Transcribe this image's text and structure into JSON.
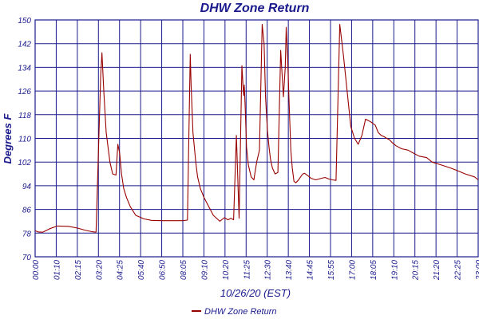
{
  "chart_data": {
    "type": "line",
    "title": "DHW Zone Return",
    "xlabel": "10/26/20 (EST)",
    "ylabel": "Degrees F",
    "ylim": [
      70,
      150
    ],
    "yticks": [
      70,
      78,
      86,
      94,
      102,
      110,
      118,
      126,
      134,
      142,
      150
    ],
    "xlim_hours": [
      0,
      24
    ],
    "xtick_labels": [
      "00:00",
      "01:10",
      "02:15",
      "03:20",
      "04:25",
      "05:40",
      "06:50",
      "08:05",
      "09:10",
      "10:20",
      "11:25",
      "12:30",
      "13:40",
      "14:45",
      "15:55",
      "17:00",
      "18:05",
      "19:10",
      "20:15",
      "21:20",
      "22:25",
      "23:00"
    ],
    "grid": true,
    "legend": "bottom-center",
    "colors": {
      "series": "#990000",
      "grid": "#1a1a8c",
      "text": "#1a1a8c"
    },
    "series": [
      {
        "name": "DHW Zone Return",
        "x": [
          0,
          0.15,
          0.4,
          0.8,
          1.2,
          1.8,
          2.3,
          2.7,
          3.05,
          3.3,
          3.55,
          3.62,
          3.72,
          3.85,
          4.05,
          4.2,
          4.38,
          4.48,
          4.58,
          4.68,
          4.8,
          4.95,
          5.15,
          5.45,
          5.9,
          6.3,
          6.8,
          7.2,
          7.6,
          8.0,
          8.25,
          8.4,
          8.45,
          8.55,
          8.7,
          8.8,
          8.95,
          9.15,
          9.4,
          9.65,
          10.0,
          10.25,
          10.45,
          10.6,
          10.75,
          10.9,
          11.05,
          11.2,
          11.28,
          11.3,
          11.33,
          11.38,
          11.45,
          11.55,
          11.7,
          11.85,
          12.0,
          12.15,
          12.3,
          12.4,
          12.48,
          12.58,
          12.67,
          12.75,
          12.85,
          13.0,
          13.15,
          13.3,
          13.45,
          13.55,
          13.6,
          13.68,
          13.77,
          13.85,
          13.93,
          14.02,
          14.12,
          14.25,
          14.38,
          14.5,
          14.6,
          14.75,
          14.95,
          15.2,
          15.5,
          15.7,
          15.9,
          16.1,
          16.3,
          16.5,
          16.7,
          16.9,
          17.1,
          17.3,
          17.5,
          17.7,
          17.9,
          18.05,
          18.2,
          18.3,
          18.42,
          18.58,
          18.75,
          18.92,
          19.05,
          19.2,
          19.35,
          19.55,
          19.85,
          20.2,
          20.5,
          20.8,
          21.2,
          21.5,
          22.0,
          22.5,
          22.9,
          23.3,
          23.8,
          24.0
        ],
        "y": [
          78.8,
          78.4,
          78.3,
          79.5,
          80.4,
          80.3,
          79.7,
          79.0,
          78.5,
          78.3,
          131.0,
          138.9,
          126.0,
          112.0,
          102.0,
          98.0,
          97.6,
          108.0,
          105.0,
          98.0,
          93.0,
          90.0,
          87.0,
          84.0,
          82.8,
          82.3,
          82.2,
          82.2,
          82.2,
          82.2,
          82.4,
          138.4,
          128.0,
          112.0,
          102.0,
          97.0,
          93.0,
          90.0,
          87.0,
          84.0,
          82.0,
          83.2,
          82.5,
          83.0,
          82.5,
          111.0,
          83.0,
          134.5,
          126.0,
          124.5,
          128.0,
          120.0,
          107.0,
          101.0,
          97.0,
          96.0,
          102.0,
          106.0,
          148.5,
          142.0,
          124.0,
          113.0,
          107.0,
          103.0,
          100.0,
          98.0,
          98.5,
          139.7,
          124.0,
          134.0,
          147.5,
          137.0,
          120.0,
          106.0,
          100.0,
          95.5,
          95.0,
          95.8,
          97.0,
          98.0,
          98.2,
          97.5,
          96.5,
          96.0,
          96.5,
          96.8,
          96.3,
          96.0,
          95.8,
          148.5,
          138.0,
          126.0,
          114.0,
          110.0,
          108.0,
          111.0,
          116.5,
          116.0,
          115.5,
          115.0,
          114.5,
          112.0,
          111.0,
          110.5,
          110.0,
          109.5,
          108.5,
          107.5,
          106.5,
          106.0,
          105.0,
          104.0,
          103.5,
          102.0,
          101.0,
          100.0,
          99.0,
          98.0,
          97.0,
          96.0
        ]
      }
    ]
  }
}
